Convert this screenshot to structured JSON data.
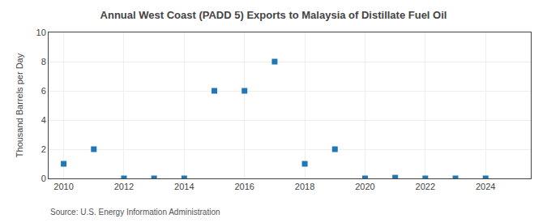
{
  "chart_data": {
    "type": "scatter",
    "title": "Annual West Coast (PADD 5) Exports to Malaysia of Distillate Fuel Oil",
    "y_label": "Thousand Barrels per Day",
    "annotations": [
      "Source: U.S. Energy Information Administration"
    ],
    "x": [
      2010,
      2011,
      2012,
      2013,
      2014,
      2015,
      2016,
      2017,
      2018,
      2019,
      2020,
      2021,
      2022,
      2023,
      2024
    ],
    "values": [
      1,
      2,
      0,
      0,
      0,
      6,
      6,
      8,
      1,
      2,
      0,
      0.05,
      0,
      0,
      0
    ],
    "marker": "square",
    "xlim": [
      2009.5,
      2025.5
    ],
    "xticks": [
      2010,
      2012,
      2014,
      2016,
      2018,
      2020,
      2022,
      2024
    ],
    "ylim": [
      0,
      10
    ],
    "yticks": [
      0,
      2,
      4,
      6,
      8,
      10
    ],
    "grid": true
  }
}
